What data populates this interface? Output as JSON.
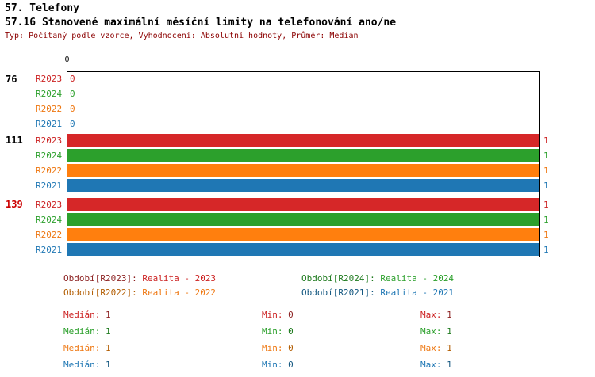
{
  "header": {
    "line1": "57. Telefony",
    "line2": "57.16 Stanovené maximální měsíční limity na telefonování ano/ne",
    "line3": "Typ: Počítaný podle vzorce, Vyhodnocení: Absolutní hodnoty, Průměr: Medián"
  },
  "colors": {
    "series_text": {
      "R2023": "#cc2222",
      "R2024": "#2ca02c",
      "R2022": "#ee7711",
      "R2021": "#1f77b4"
    },
    "series_bar": {
      "R2023": "#d62728",
      "R2024": "#2ca02c",
      "R2022": "#ff7f0e",
      "R2021": "#1f77b4"
    },
    "subtitle": "#8b0000",
    "group_139_label": "#cc0000",
    "axis": "#000000"
  },
  "chart": {
    "axis_zero_label": "0",
    "groups": [
      {
        "label": "76",
        "rows": [
          {
            "series": "R2023",
            "value_label": "0",
            "num": 0
          },
          {
            "series": "R2024",
            "value_label": "0",
            "num": 0
          },
          {
            "series": "R2022",
            "value_label": "0",
            "num": 0
          },
          {
            "series": "R2021",
            "value_label": "0",
            "num": 0
          }
        ]
      },
      {
        "label": "111",
        "rows": [
          {
            "series": "R2023",
            "value_label": "1",
            "num": 1
          },
          {
            "series": "R2024",
            "value_label": "1",
            "num": 1
          },
          {
            "series": "R2022",
            "value_label": "1",
            "num": 1
          },
          {
            "series": "R2021",
            "value_label": "1",
            "num": 1
          }
        ]
      },
      {
        "label": "139",
        "rows": [
          {
            "series": "R2023",
            "value_label": "1",
            "num": 1
          },
          {
            "series": "R2024",
            "value_label": "1",
            "num": 1
          },
          {
            "series": "R2022",
            "value_label": "1",
            "num": 1
          },
          {
            "series": "R2021",
            "value_label": "1",
            "num": 1
          }
        ]
      }
    ]
  },
  "legend": {
    "r2023": {
      "label": "Období[R2023]:",
      "value": "Realita - 2023"
    },
    "r2024": {
      "label": "Období[R2024]:",
      "value": "Realita - 2024"
    },
    "r2022": {
      "label": "Období[R2022]:",
      "value": "Realita - 2022"
    },
    "r2021": {
      "label": "Období[R2021]:",
      "value": "Realita - 2021"
    }
  },
  "stats": [
    {
      "series": "R2023",
      "median_label": "Medián:",
      "median": "1",
      "min_label": "Min:",
      "min": "0",
      "max_label": "Max:",
      "max": "1"
    },
    {
      "series": "R2024",
      "median_label": "Medián:",
      "median": "1",
      "min_label": "Min:",
      "min": "0",
      "max_label": "Max:",
      "max": "1"
    },
    {
      "series": "R2022",
      "median_label": "Medián:",
      "median": "1",
      "min_label": "Min:",
      "min": "0",
      "max_label": "Max:",
      "max": "1"
    },
    {
      "series": "R2021",
      "median_label": "Medián:",
      "median": "1",
      "min_label": "Min:",
      "min": "0",
      "max_label": "Max:",
      "max": "1"
    }
  ],
  "chart_data": {
    "type": "bar",
    "orientation": "horizontal",
    "title": "57.16 Stanovené maximální měsíční limity na telefonování ano/ne",
    "subtitle": "Typ: Počítaný podle vzorce, Vyhodnocení: Absolutní hodnoty, Průměr: Medián",
    "section": "57. Telefony",
    "categories": [
      "76",
      "111",
      "139"
    ],
    "series": [
      {
        "name": "R2023",
        "legend": "Realita - 2023",
        "color": "#d62728",
        "values": [
          0,
          1,
          1
        ],
        "median": 1,
        "min": 0,
        "max": 1
      },
      {
        "name": "R2024",
        "legend": "Realita - 2024",
        "color": "#2ca02c",
        "values": [
          0,
          1,
          1
        ],
        "median": 1,
        "min": 0,
        "max": 1
      },
      {
        "name": "R2022",
        "legend": "Realita - 2022",
        "color": "#ff7f0e",
        "values": [
          0,
          1,
          1
        ],
        "median": 1,
        "min": 0,
        "max": 1
      },
      {
        "name": "R2021",
        "legend": "Realita - 2021",
        "color": "#1f77b4",
        "values": [
          0,
          1,
          1
        ],
        "median": 1,
        "min": 0,
        "max": 1
      }
    ],
    "xlim": [
      0,
      1
    ],
    "value_labels": true,
    "grid": false,
    "legend_position": "bottom"
  }
}
